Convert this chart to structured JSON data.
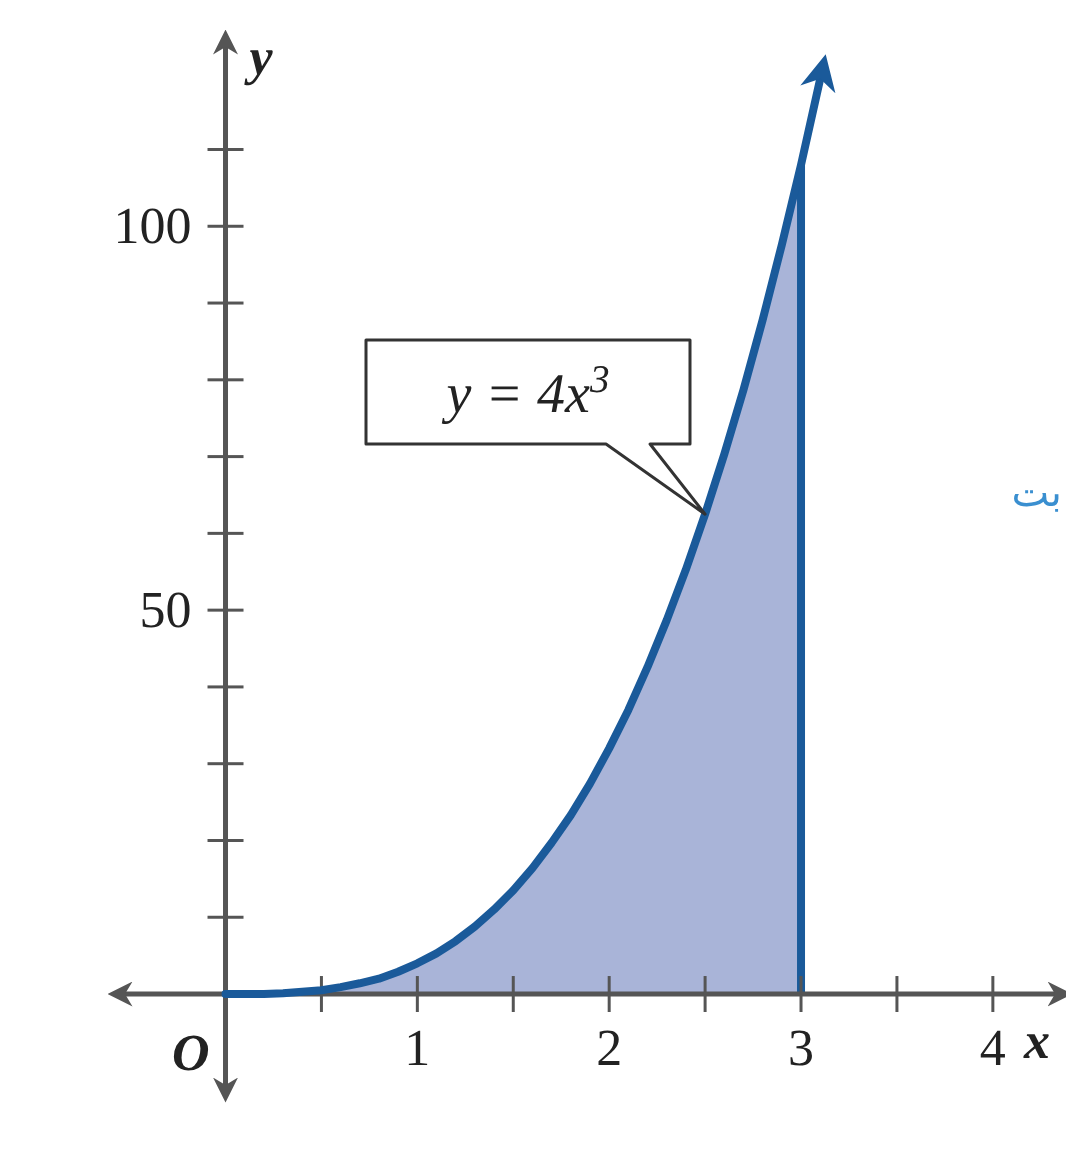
{
  "chart_data": {
    "type": "line",
    "xlabel": "x",
    "ylabel": "y",
    "xlim": [
      -0.55,
      4.35
    ],
    "ylim": [
      -12.5,
      124
    ],
    "xticks": [
      {
        "value": 0.5,
        "label": null
      },
      1,
      {
        "value": 1.5,
        "label": null
      },
      2,
      {
        "value": 2.5,
        "label": null
      },
      3,
      {
        "value": 3.5,
        "label": null
      },
      4
    ],
    "yticks": [
      {
        "value": 10,
        "label": null
      },
      {
        "value": 20,
        "label": null
      },
      {
        "value": 30,
        "label": null
      },
      {
        "value": 40,
        "label": null
      },
      50,
      {
        "value": 60,
        "label": null
      },
      {
        "value": 70,
        "label": null
      },
      {
        "value": 80,
        "label": null
      },
      {
        "value": 90,
        "label": null
      },
      100,
      {
        "value": 110,
        "label": null
      }
    ],
    "series": [
      {
        "type": "area",
        "color": "#a9b4d8",
        "x": [
          0,
          0.1,
          0.2,
          0.3,
          0.4,
          0.5,
          0.6,
          0.7,
          0.8,
          0.9,
          1,
          1.1,
          1.2,
          1.3,
          1.4,
          1.5,
          1.6,
          1.7,
          1.8,
          1.9,
          2,
          2.1,
          2.2,
          2.3,
          2.4,
          2.5,
          2.6,
          2.7,
          2.8,
          2.9,
          3
        ],
        "values": [
          0,
          0,
          0,
          0.1,
          0.3,
          0.5,
          0.9,
          1.4,
          2,
          2.9,
          4,
          5.3,
          6.9,
          8.8,
          11,
          13.5,
          16.4,
          19.7,
          23.3,
          27.4,
          32,
          37,
          42.6,
          48.7,
          55.3,
          62.5,
          70.3,
          78.7,
          87.8,
          97.6,
          108
        ]
      },
      {
        "color": "#1a5a9a",
        "x": [
          0,
          0.1,
          0.2,
          0.3,
          0.4,
          0.5,
          0.6,
          0.7,
          0.8,
          0.9,
          1,
          1.1,
          1.2,
          1.3,
          1.4,
          1.5,
          1.6,
          1.7,
          1.8,
          1.9,
          2,
          2.1,
          2.2,
          2.3,
          2.4,
          2.5,
          2.6,
          2.7,
          2.8,
          2.9,
          3,
          3.1
        ],
        "values": [
          0,
          0,
          0,
          0.1,
          0.3,
          0.5,
          0.9,
          1.4,
          2,
          2.9,
          4,
          5.3,
          6.9,
          8.8,
          11,
          13.5,
          16.4,
          19.7,
          23.3,
          27.4,
          32,
          37,
          42.6,
          48.7,
          55.3,
          62.5,
          70.3,
          78.7,
          87.8,
          97.6,
          108,
          119.2
        ]
      }
    ],
    "ref_lines": [
      {
        "axis": "x",
        "value": 3,
        "color": "#1a5a9a"
      }
    ],
    "annotations": [
      {
        "text": "y = 4x$^{3}$",
        "x": 2.5,
        "y": 62.5
      },
      "O",
      "بت"
    ],
    "grid": false
  }
}
